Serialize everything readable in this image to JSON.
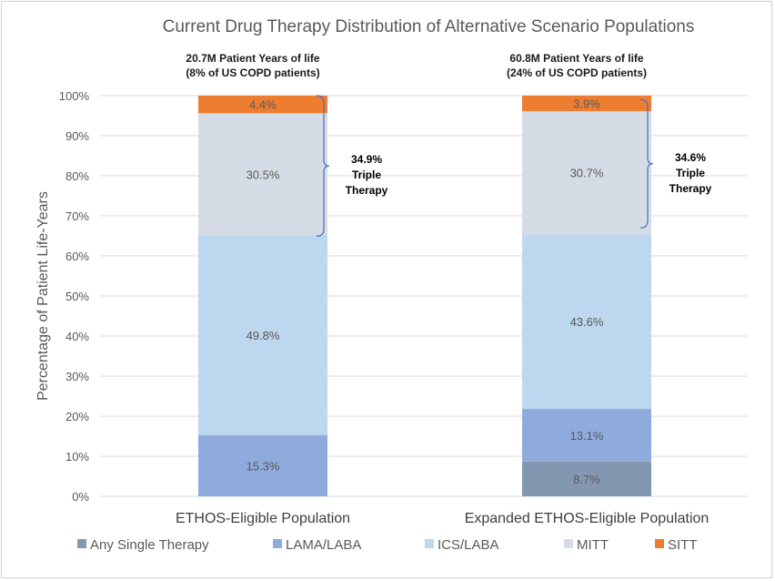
{
  "chart_data": {
    "type": "bar",
    "stacked": true,
    "title": "Current Drug Therapy Distribution of Alternative Scenario Populations",
    "ylabel": "Percentage of Patient Life-Years",
    "xlabel": "",
    "ylim": [
      0,
      100
    ],
    "yticks": [
      "0%",
      "10%",
      "20%",
      "30%",
      "40%",
      "50%",
      "60%",
      "70%",
      "80%",
      "90%",
      "100%"
    ],
    "grid": true,
    "legend_position": "bottom",
    "categories": [
      "ETHOS-Eligible Population",
      "Expanded ETHOS-Eligible Population"
    ],
    "series": [
      {
        "name": "Any Single Therapy",
        "color": "#8497b0",
        "values": [
          0,
          8.7
        ],
        "labels": [
          "",
          "8.7%"
        ]
      },
      {
        "name": "LAMA/LABA",
        "color": "#8faadc",
        "values": [
          15.3,
          13.1
        ],
        "labels": [
          "15.3%",
          "13.1%"
        ]
      },
      {
        "name": "ICS/LABA",
        "color": "#bdd7ee",
        "values": [
          49.8,
          43.6
        ],
        "labels": [
          "49.8%",
          "43.6%"
        ]
      },
      {
        "name": "MITT",
        "color": "#d6dce5",
        "values": [
          30.5,
          30.7
        ],
        "labels": [
          "30.5%",
          "30.7%"
        ]
      },
      {
        "name": "SITT",
        "color": "#ed7d31",
        "values": [
          4.4,
          3.9
        ],
        "labels": [
          "4.4%",
          "3.9%"
        ]
      }
    ],
    "bar_headers": [
      [
        "20.7M Patient Years of life",
        "(8% of US COPD patients)"
      ],
      [
        "60.8M Patient Years of life",
        "(24% of US COPD patients)"
      ]
    ],
    "annotations": [
      {
        "lines": [
          "34.9%",
          "Triple",
          "Therapy"
        ],
        "bracket_from": 64.9,
        "bracket_to": 100
      },
      {
        "lines": [
          "34.6%",
          "Triple",
          "Therapy"
        ],
        "bracket_from": 67,
        "bracket_to": 99
      }
    ]
  }
}
